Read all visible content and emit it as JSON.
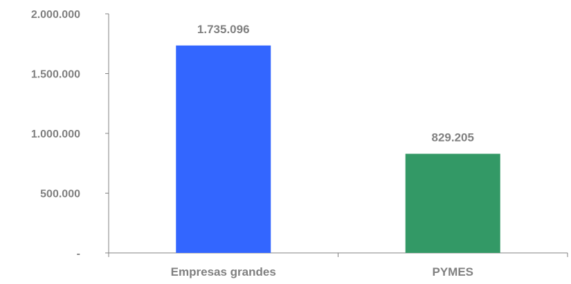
{
  "chart_data": {
    "type": "bar",
    "title": "",
    "xlabel": "",
    "ylabel": "",
    "categories": [
      "Empresas grandes",
      "PYMES"
    ],
    "values": [
      1735096,
      829205
    ],
    "value_labels": [
      "1.735.096",
      "829.205"
    ],
    "ylim": [
      0,
      2000000
    ],
    "yticks": [
      0,
      500000,
      1000000,
      1500000,
      2000000
    ],
    "ytick_labels": [
      "-",
      "500.000",
      "1.000.000",
      "1.500.000",
      "2.000.000"
    ],
    "bar_colors": [
      "#3366ff",
      "#339966"
    ],
    "text_color": "#808080",
    "axis_color": "#808080",
    "grid": false,
    "legend": "none"
  }
}
